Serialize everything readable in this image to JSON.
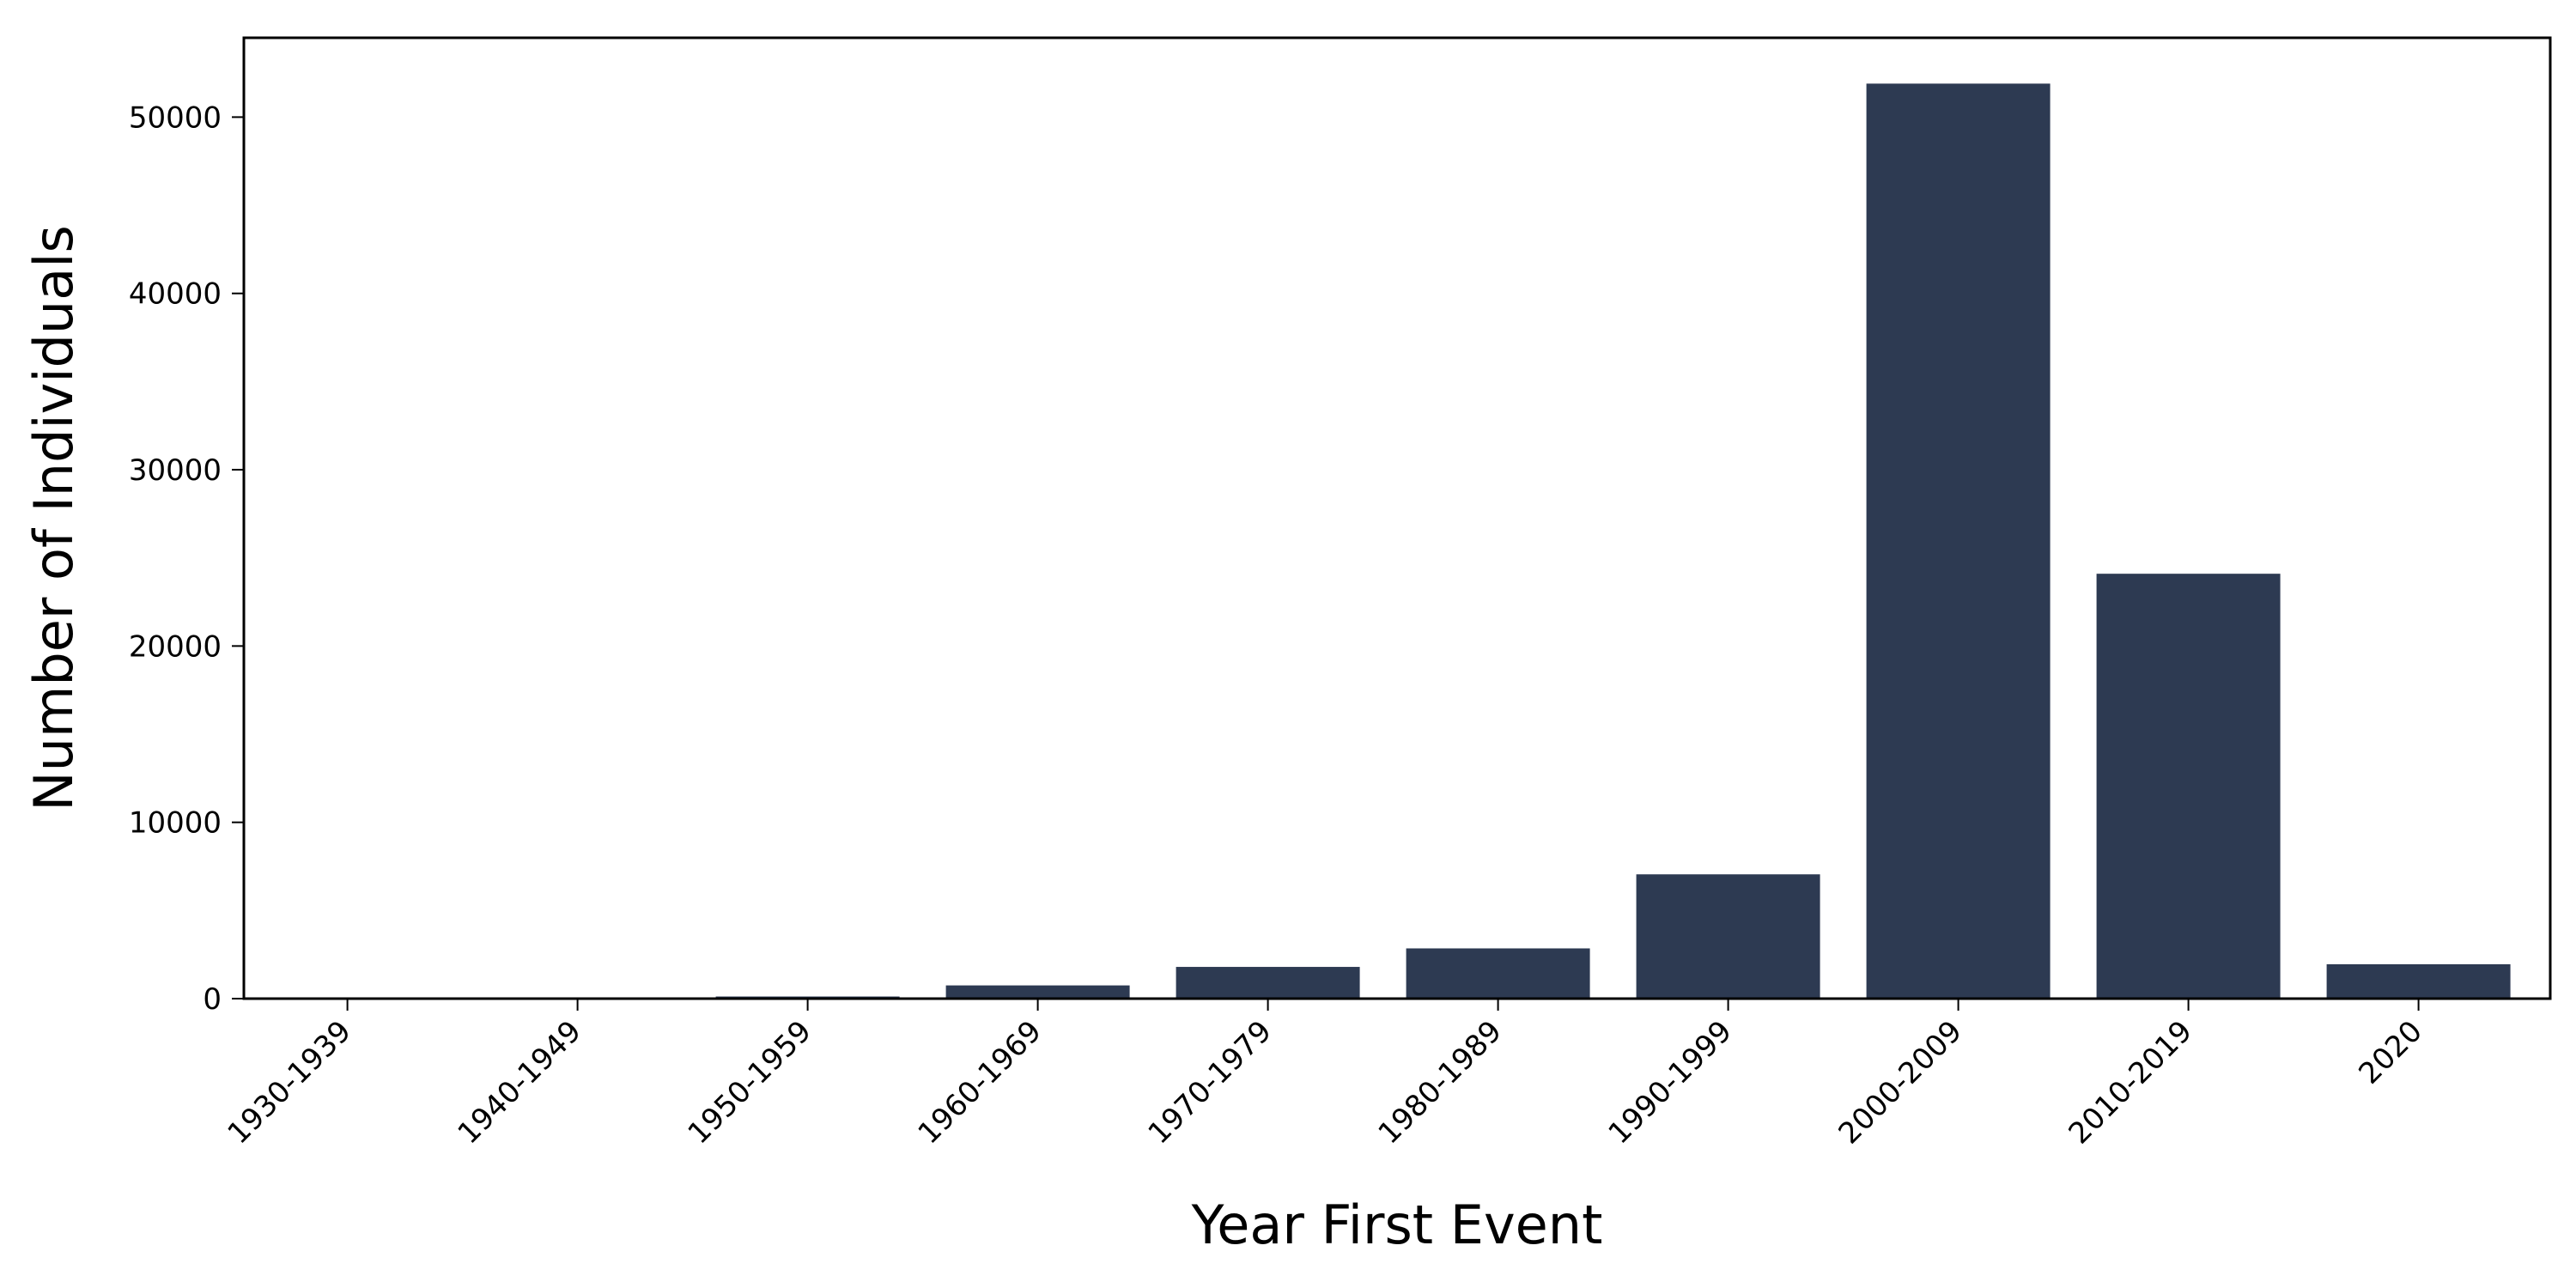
{
  "chart_data": {
    "type": "bar",
    "title": "",
    "xlabel": "Year First Event",
    "ylabel": "Number of Individuals",
    "categories": [
      "1930-1939",
      "1940-1949",
      "1950-1959",
      "1960-1969",
      "1970-1979",
      "1980-1989",
      "1990-1999",
      "2000-2009",
      "2010-2019",
      "2020"
    ],
    "values": [
      10,
      20,
      120,
      750,
      1800,
      2850,
      7050,
      51900,
      24100,
      1950
    ],
    "ylim": [
      0,
      54500
    ],
    "yticks": [
      0,
      10000,
      20000,
      30000,
      40000,
      50000
    ],
    "ytick_labels": [
      "0",
      "10000",
      "20000",
      "30000",
      "40000",
      "50000"
    ],
    "grid": false,
    "legend": "none",
    "colors": {
      "bar": "#2d3a52",
      "axis": "#000000",
      "background": "#ffffff"
    }
  }
}
